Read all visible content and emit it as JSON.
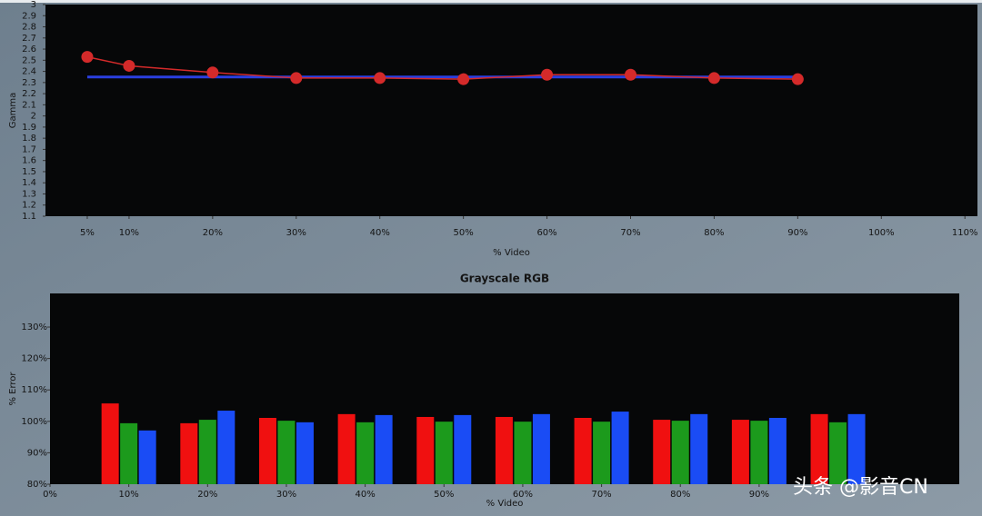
{
  "chart_data": [
    {
      "type": "line",
      "y_label": "Gamma",
      "x_label": "% Video",
      "x": [
        5,
        10,
        20,
        30,
        40,
        50,
        60,
        70,
        80,
        90
      ],
      "series": [
        {
          "color": "#2a3fe0",
          "values": [
            2.35,
            2.35,
            2.35,
            2.35,
            2.35,
            2.35,
            2.35,
            2.35,
            2.35,
            2.35
          ],
          "markers": false
        },
        {
          "color": "#d42a2a",
          "values": [
            2.53,
            2.45,
            2.39,
            2.34,
            2.34,
            2.33,
            2.37,
            2.37,
            2.34,
            2.33
          ],
          "markers": true
        }
      ],
      "xlim": [
        0,
        111.5
      ],
      "xticks": [
        {
          "value": 5,
          "label": "5%"
        },
        {
          "value": 10,
          "label": "10%"
        },
        {
          "value": 20,
          "label": "20%"
        },
        {
          "value": 30,
          "label": "30%"
        },
        {
          "value": 40,
          "label": "40%"
        },
        {
          "value": 50,
          "label": "50%"
        },
        {
          "value": 60,
          "label": "60%"
        },
        {
          "value": 70,
          "label": "70%"
        },
        {
          "value": 80,
          "label": "80%"
        },
        {
          "value": 90,
          "label": "90%"
        },
        {
          "value": 100,
          "label": "100%"
        },
        {
          "value": 110,
          "label": "110%"
        }
      ],
      "ylim": [
        1.1,
        3
      ],
      "yticks": [
        1.1,
        1.2,
        1.3,
        1.4,
        1.5,
        1.6,
        1.7,
        1.8,
        1.9,
        2,
        2.1,
        2.2,
        2.3,
        2.4,
        2.5,
        2.6,
        2.7,
        2.8,
        2.9,
        3
      ]
    },
    {
      "type": "bar",
      "title": "Grayscale RGB",
      "y_label": "% Error",
      "x_label": "% Video",
      "x": [
        10,
        20,
        30,
        40,
        50,
        60,
        70,
        80,
        90,
        100
      ],
      "series": [
        {
          "color": "#f01010",
          "values": [
            105.7,
            99.4,
            101.1,
            102.3,
            101.4,
            101.4,
            101.1,
            100.5,
            100.5,
            102.3
          ]
        },
        {
          "color": "#1c9a1c",
          "values": [
            99.4,
            100.5,
            100.2,
            99.7,
            99.9,
            99.9,
            99.9,
            100.2,
            100.2,
            99.7
          ]
        },
        {
          "color": "#1a4cf5",
          "values": [
            97.1,
            103.4,
            99.7,
            102.0,
            102.0,
            102.3,
            103.1,
            102.3,
            101.1,
            102.3
          ]
        }
      ],
      "xlim": [
        0,
        115.4
      ],
      "xticks": [
        {
          "value": 0,
          "label": "0%"
        },
        {
          "value": 10,
          "label": "10%"
        },
        {
          "value": 20,
          "label": "20%"
        },
        {
          "value": 30,
          "label": "30%"
        },
        {
          "value": 40,
          "label": "40%"
        },
        {
          "value": 50,
          "label": "50%"
        },
        {
          "value": 60,
          "label": "60%"
        },
        {
          "value": 70,
          "label": "70%"
        },
        {
          "value": 80,
          "label": "80%"
        },
        {
          "value": 90,
          "label": "90%"
        }
      ],
      "ylim": [
        80,
        140.7
      ],
      "yticks": [
        {
          "value": 80,
          "label": "80%"
        },
        {
          "value": 90,
          "label": "90%"
        },
        {
          "value": 100,
          "label": "100%"
        },
        {
          "value": 110,
          "label": "110%"
        },
        {
          "value": 120,
          "label": "120%"
        },
        {
          "value": 130,
          "label": "130%"
        }
      ]
    }
  ],
  "watermark": "头条 @影音CN"
}
